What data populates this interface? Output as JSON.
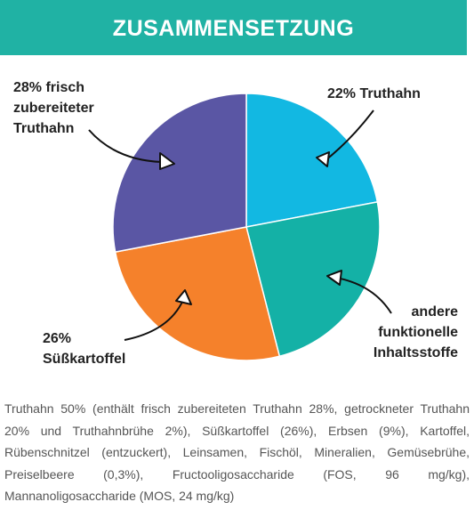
{
  "header": {
    "title": "ZUSAMMENSETZUNG"
  },
  "chart_data": {
    "type": "pie",
    "categories": [
      [
        "22% Truthahn"
      ],
      [
        "andere",
        "funktionelle",
        "Inhaltsstoffe"
      ],
      [
        "26%",
        "Süßkartoffel"
      ],
      [
        "28% frisch",
        "zubereiteter",
        "Truthahn"
      ]
    ],
    "values": [
      22,
      24,
      26,
      28
    ],
    "colors": [
      "#12b8e2",
      "#14b1a6",
      "#f5812b",
      "#5a56a4"
    ]
  },
  "description": "Truthahn 50% (enthält frisch zubereiteten Truthahn 28%, getrockneter Truthahn 20% und Truthahnbrühe 2%), Süßkartoffel (26%), Erbsen (9%), Kartoffel, Rübenschnitzel (entzuckert), Leinsamen, Fischöl, Mineralien, Gemüsebrühe, Preiselbeere (0,3%), Fructooligosaccharide (FOS, 96 mg/kg), Mannanoligosaccharide (MOS, 24 mg/kg)"
}
